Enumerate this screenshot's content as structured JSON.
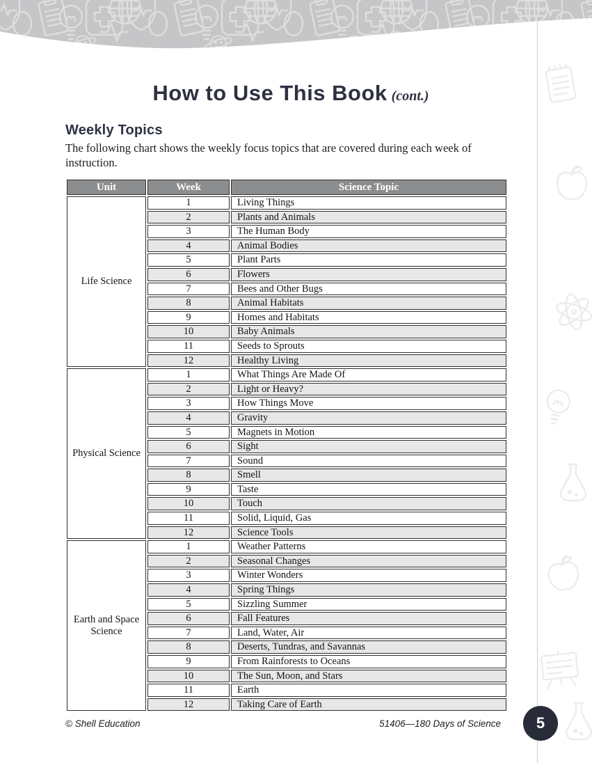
{
  "page": {
    "title": "How to Use This Book",
    "title_suffix": "(cont.)",
    "section_heading": "Weekly Topics",
    "intro": "The following chart shows the weekly focus topics that are covered during each week of instruction.",
    "footer_left": "© Shell Education",
    "footer_right": "51406—180 Days of Science",
    "page_number": "5"
  },
  "colors": {
    "band_gray": "#c6c6c8",
    "band_icon_stroke": "#ffffff",
    "table_header_bg": "#8b8d8f",
    "row_stripe": "#e7e7e8",
    "cell_border": "#2e2e2e",
    "title_color": "#2e3140",
    "page_circle_bg": "#272c38",
    "strip_icon_stroke": "#e0e0e2"
  },
  "table": {
    "headers": [
      "Unit",
      "Week",
      "Science Topic"
    ],
    "week_numbers": [
      "1",
      "2",
      "3",
      "4",
      "5",
      "6",
      "7",
      "8",
      "9",
      "10",
      "11",
      "12"
    ],
    "units": [
      {
        "unit": "Life Science",
        "topics": [
          "Living Things",
          "Plants and Animals",
          "The Human Body",
          "Animal Bodies",
          "Plant Parts",
          "Flowers",
          "Bees and Other Bugs",
          "Animal Habitats",
          "Homes and Habitats",
          "Baby Animals",
          "Seeds to Sprouts",
          "Healthy Living"
        ]
      },
      {
        "unit": "Physical Science",
        "topics": [
          "What Things Are Made Of",
          "Light or Heavy?",
          "How Things Move",
          "Gravity",
          "Magnets in Motion",
          "Sight",
          "Sound",
          "Smell",
          "Taste",
          "Touch",
          "Solid, Liquid, Gas",
          "Science Tools"
        ]
      },
      {
        "unit": "Earth and Space Science",
        "topics": [
          "Weather Patterns",
          "Seasonal Changes",
          "Winter Wonders",
          "Spring Things",
          "Sizzling Summer",
          "Fall Features",
          "Land, Water, Air",
          "Deserts, Tundras, and Savannas",
          "From Rainforests to Oceans",
          "The Sun, Moon, and Stars",
          "Earth",
          "Taking Care of Earth"
        ]
      }
    ]
  },
  "decor": {
    "band_icons": [
      "shield-pulse-icon",
      "oval-icon",
      "clipboard-icon",
      "lightbulb-icon",
      "planet-smiley-icon",
      "medical-cross-icon",
      "globe-icon",
      "pulse-line-icon"
    ],
    "strip_icons": [
      "notebook-icon",
      "apple-icon",
      "atom-icon",
      "lightbulb-icon",
      "flask-icon",
      "presentation-board-icon"
    ]
  }
}
